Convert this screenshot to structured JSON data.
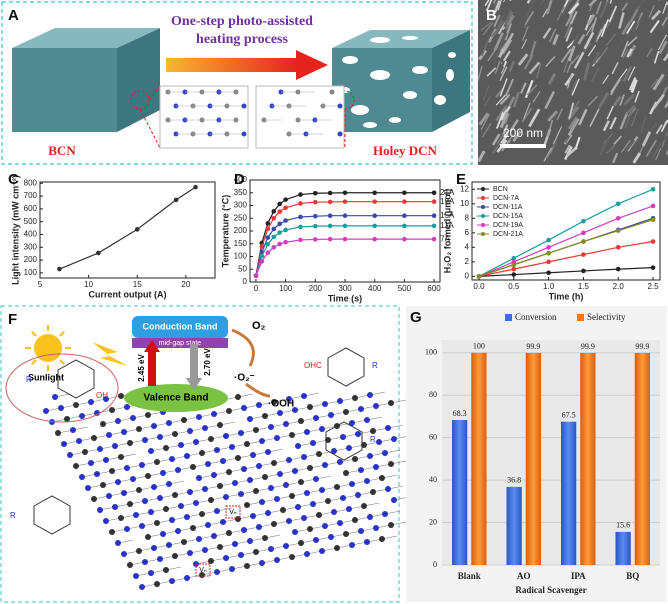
{
  "panel_a": {
    "label": "A",
    "process_line1": "One-step photo-assisted",
    "process_line2": "heating process",
    "left": "BCN",
    "right": "Holey DCN"
  },
  "panel_b": {
    "label": "B",
    "scale": "200 nm"
  },
  "panel_f": {
    "label": "F",
    "sunlight": "Sunlight",
    "conduction_band": "Conduction Band",
    "mid_gap": "mid-gap state",
    "valence_band": "Valence Band",
    "o2": "O₂",
    "superoxide": "·O₂⁻",
    "hydroperoxyl": "·OOH",
    "gap1": "2.45 eV",
    "gap2": "2.70 eV",
    "oh": "OH",
    "ohc": "OHC",
    "r": "R",
    "vn": "Vₙ"
  },
  "chart_data": [
    {
      "type": "line",
      "panel": "C",
      "xlabel": "Current output (A)",
      "ylabel": "Light intensity (mW cm⁻²)",
      "x": [
        7,
        11,
        15,
        19,
        21
      ],
      "series": [
        {
          "color": "#333333",
          "values": [
            130,
            255,
            440,
            670,
            770
          ]
        }
      ],
      "xlim": [
        5,
        23
      ],
      "ylim": [
        60,
        810
      ],
      "xticks": [
        5,
        10,
        15,
        20
      ],
      "yticks": [
        100,
        200,
        300,
        400,
        500,
        600,
        700,
        800
      ]
    },
    {
      "type": "line",
      "panel": "D",
      "xlabel": "Time (s)",
      "ylabel": "Temperature (°C)",
      "legend": "line end",
      "x": [
        0,
        20,
        40,
        60,
        80,
        100,
        150,
        200,
        250,
        300,
        400,
        500,
        600
      ],
      "series": [
        {
          "name": "21A",
          "color": "#222222",
          "values": [
            25,
            153,
            230,
            277,
            306,
            323,
            343,
            348,
            349,
            350,
            350,
            350,
            350
          ]
        },
        {
          "name": "19A",
          "color": "#e53935",
          "values": [
            25,
            139,
            208,
            250,
            276,
            291,
            308,
            313,
            314,
            315,
            315,
            315,
            315
          ]
        },
        {
          "name": "15A",
          "color": "#3949ab",
          "values": [
            25,
            117,
            174,
            208,
            228,
            241,
            255,
            258,
            260,
            260,
            260,
            260,
            260
          ]
        },
        {
          "name": "11A",
          "color": "#1a9e9e",
          "values": [
            25,
            102,
            148,
            177,
            194,
            204,
            216,
            219,
            220,
            220,
            220,
            220,
            220
          ]
        },
        {
          "name": "7A",
          "color": "#d63bbf",
          "values": [
            25,
            81,
            115,
            136,
            149,
            156,
            165,
            167,
            168,
            168,
            168,
            168,
            168
          ]
        }
      ],
      "xlim": [
        -20,
        620
      ],
      "ylim": [
        0,
        400
      ],
      "xticks": [
        0,
        100,
        200,
        300,
        400,
        500,
        600
      ],
      "yticks": [
        0,
        50,
        100,
        150,
        200,
        250,
        300,
        350,
        400
      ]
    },
    {
      "type": "line",
      "panel": "E",
      "xlabel": "Time (h)",
      "ylabel": "H₂O₂ formed (μmol)",
      "legend": "upper left",
      "x": [
        0,
        0.5,
        1,
        1.5,
        2,
        2.5
      ],
      "series": [
        {
          "name": "BCN",
          "color": "#222222",
          "values": [
            0,
            0.25,
            0.5,
            0.75,
            1.0,
            1.2
          ]
        },
        {
          "name": "DCN-7A",
          "color": "#e53935",
          "values": [
            0,
            1.0,
            2.0,
            3.0,
            4.0,
            4.8
          ]
        },
        {
          "name": "DCN-11A",
          "color": "#3949ab",
          "values": [
            0,
            1.6,
            3.2,
            4.8,
            6.4,
            8.0
          ]
        },
        {
          "name": "DCN-15A",
          "color": "#1a9e9e",
          "values": [
            0,
            2.5,
            5.0,
            7.6,
            10.0,
            12.0
          ]
        },
        {
          "name": "DCN-19A",
          "color": "#d63bbf",
          "values": [
            0,
            2.0,
            4.0,
            6.0,
            8.0,
            9.7
          ]
        },
        {
          "name": "DCN-21A",
          "color": "#8a8a1e",
          "values": [
            0,
            1.6,
            3.2,
            4.8,
            6.3,
            7.8
          ]
        }
      ],
      "xlim": [
        -0.1,
        2.6
      ],
      "ylim": [
        -0.5,
        13
      ],
      "xticks": [
        {
          "value": 0,
          "label": "0.0"
        },
        0.5,
        {
          "value": 1,
          "label": "1.0"
        },
        1.5,
        {
          "value": 2,
          "label": "2.0"
        },
        2.5
      ],
      "yticks": [
        0,
        2,
        4,
        6,
        8,
        10,
        12
      ]
    },
    {
      "type": "bar",
      "panel": "G",
      "xlabel": "Radical Scavenger",
      "legend": "top",
      "categories": [
        "Blank",
        "AO",
        "IPA",
        "BQ"
      ],
      "series": [
        {
          "name": "Conversion",
          "color": "#3f6fd8",
          "values": [
            68.3,
            36.8,
            67.5,
            15.6
          ]
        },
        {
          "name": "Selectivity",
          "color": "#f07a1e",
          "values": [
            100,
            99.9,
            99.9,
            99.9
          ]
        }
      ],
      "ylim": [
        0,
        106
      ],
      "yticks": [
        0,
        20,
        40,
        60,
        80,
        100
      ]
    }
  ]
}
